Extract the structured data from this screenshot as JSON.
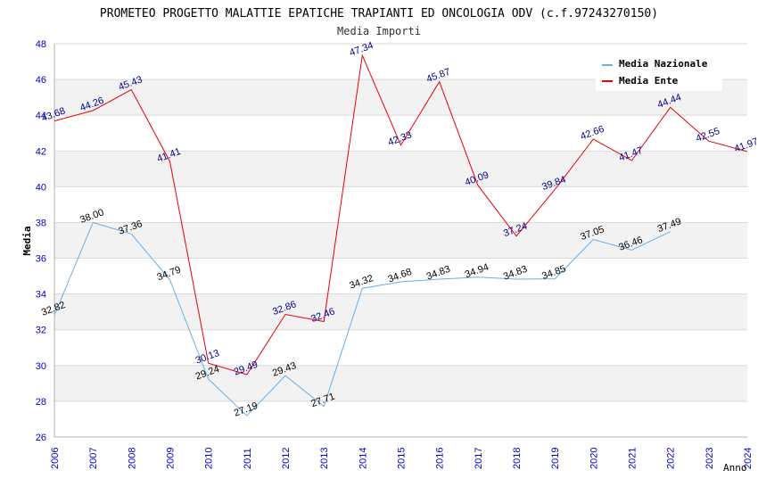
{
  "chart_data": {
    "type": "line",
    "title": "PROMETEO PROGETTO MALATTIE EPATICHE TRAPIANTI ED ONCOLOGIA ODV (c.f.97243270150)",
    "subtitle": "Media Importi",
    "xlabel": "Anno",
    "ylabel": "Media",
    "ylim": [
      26,
      48
    ],
    "yticks": [
      "26",
      "28",
      "30",
      "32",
      "34",
      "36",
      "38",
      "40",
      "42",
      "44",
      "46",
      "48"
    ],
    "x": [
      "2006",
      "2007",
      "2008",
      "2009",
      "2010",
      "2011",
      "2012",
      "2013",
      "2014",
      "2015",
      "2016",
      "2017",
      "2018",
      "2019",
      "2020",
      "2021",
      "2022",
      "2023",
      "2024"
    ],
    "legend_position": "top-right",
    "series": [
      {
        "name": "Media Nazionale",
        "color": "#6aaee8",
        "label_color": "#000000",
        "values": [
          32.82,
          38.0,
          37.36,
          34.79,
          29.24,
          27.19,
          29.43,
          27.71,
          34.32,
          34.68,
          34.83,
          34.94,
          34.83,
          34.85,
          37.05,
          36.46,
          37.49,
          null,
          null
        ],
        "labels": [
          "32.82",
          "38.00",
          "37.36",
          "34.79",
          "29.24",
          "27.19",
          "29.43",
          "27.71",
          "34.32",
          "34.68",
          "34.83",
          "34.94",
          "34.83",
          "34.85",
          "37.05",
          "36.46",
          "37.49",
          "",
          ""
        ]
      },
      {
        "name": "Media Ente",
        "color": "#e8000b",
        "label_color": "#00008b",
        "values": [
          43.68,
          44.26,
          45.43,
          41.41,
          30.13,
          29.49,
          32.86,
          32.46,
          47.34,
          42.33,
          45.87,
          40.09,
          37.24,
          39.84,
          42.66,
          41.47,
          44.44,
          42.55,
          41.97
        ],
        "labels": [
          "43.68",
          "44.26",
          "45.43",
          "41.41",
          "30.13",
          "29.49",
          "32.86",
          "32.46",
          "47.34",
          "42.33",
          "45.87",
          "40.09",
          "37.24",
          "39.84",
          "42.66",
          "41.47",
          "44.44",
          "42.55",
          "41.97"
        ]
      }
    ]
  }
}
